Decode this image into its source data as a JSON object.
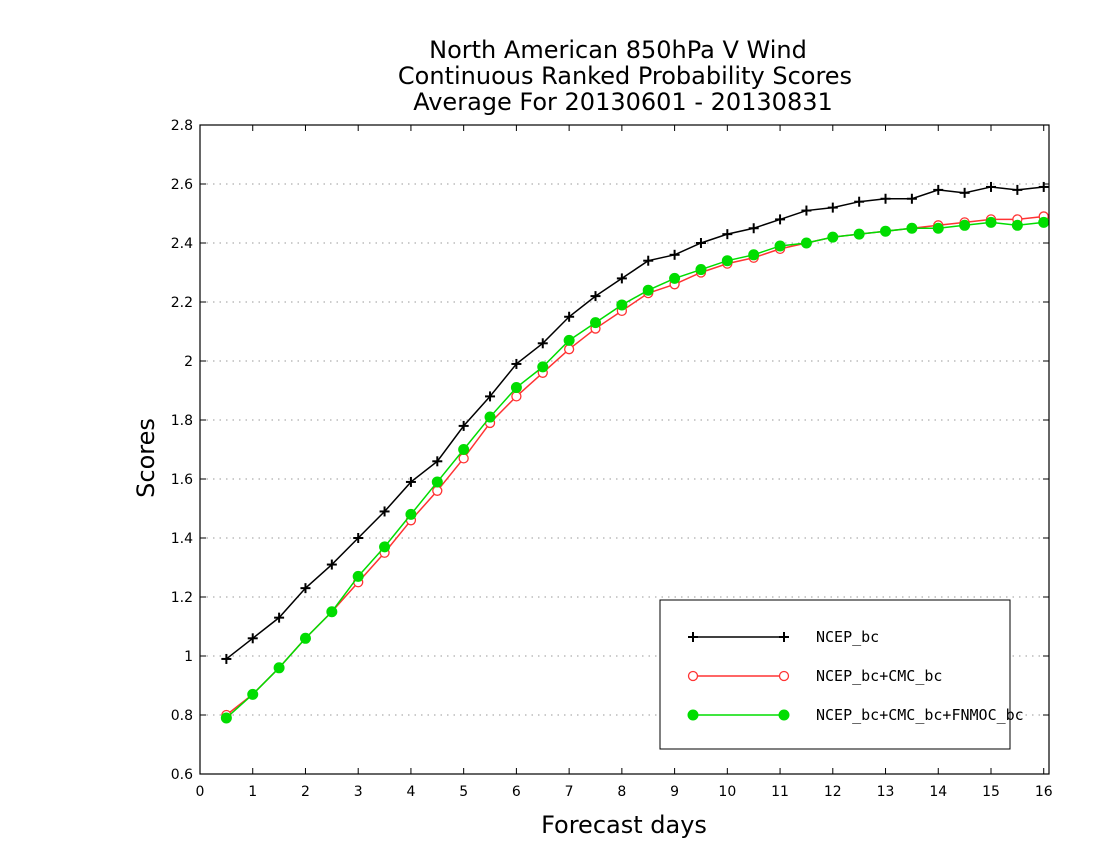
{
  "chart_data": {
    "type": "line",
    "title": [
      "North American 850hPa V Wind",
      "Continuous Ranked Probability Scores",
      "Average For 20130601 - 20130831"
    ],
    "xlabel": "Forecast days",
    "ylabel": "Scores",
    "xlim": [
      0,
      16.1
    ],
    "ylim": [
      0.6,
      2.8
    ],
    "xticks": [
      0,
      1,
      2,
      3,
      4,
      5,
      6,
      7,
      8,
      9,
      10,
      11,
      12,
      13,
      14,
      15,
      16
    ],
    "yticks": [
      0.6,
      0.8,
      1,
      1.2,
      1.4,
      1.6,
      1.8,
      2,
      2.2,
      2.4,
      2.6,
      2.8
    ],
    "ytick_labels": [
      "0.6",
      "0.8",
      "1",
      "1.2",
      "1.4",
      "1.6",
      "1.8",
      "2",
      "2.2",
      "2.4",
      "2.6",
      "2.8"
    ],
    "grid": "horizontal dotted",
    "legend_position": "bottom-right",
    "x": [
      0.5,
      1,
      1.5,
      2,
      2.5,
      3,
      3.5,
      4,
      4.5,
      5,
      5.5,
      6,
      6.5,
      7,
      7.5,
      8,
      8.5,
      9,
      9.5,
      10,
      10.5,
      11,
      11.5,
      12,
      12.5,
      13,
      13.5,
      14,
      14.5,
      15,
      15.5,
      16
    ],
    "series": [
      {
        "name": "NCEP_bc",
        "color": "#000000",
        "marker": "plus",
        "values": [
          0.99,
          1.06,
          1.13,
          1.23,
          1.31,
          1.4,
          1.49,
          1.59,
          1.66,
          1.78,
          1.88,
          1.99,
          2.06,
          2.15,
          2.22,
          2.28,
          2.34,
          2.36,
          2.4,
          2.43,
          2.45,
          2.48,
          2.51,
          2.52,
          2.54,
          2.55,
          2.55,
          2.58,
          2.57,
          2.59,
          2.58,
          2.59
        ]
      },
      {
        "name": "NCEP_bc+CMC_bc",
        "color": "#ff3333",
        "marker": "open-circle",
        "values": [
          0.8,
          0.87,
          0.96,
          1.06,
          1.15,
          1.25,
          1.35,
          1.46,
          1.56,
          1.67,
          1.79,
          1.88,
          1.96,
          2.04,
          2.11,
          2.17,
          2.23,
          2.26,
          2.3,
          2.33,
          2.35,
          2.38,
          2.4,
          2.42,
          2.43,
          2.44,
          2.45,
          2.46,
          2.47,
          2.48,
          2.48,
          2.49
        ]
      },
      {
        "name": "NCEP_bc+CMC_bc+FNMOC_bc",
        "color": "#00dd00",
        "marker": "filled-circle",
        "values": [
          0.79,
          0.87,
          0.96,
          1.06,
          1.15,
          1.27,
          1.37,
          1.48,
          1.59,
          1.7,
          1.81,
          1.91,
          1.98,
          2.07,
          2.13,
          2.19,
          2.24,
          2.28,
          2.31,
          2.34,
          2.36,
          2.39,
          2.4,
          2.42,
          2.43,
          2.44,
          2.45,
          2.45,
          2.46,
          2.47,
          2.46,
          2.47
        ]
      }
    ]
  }
}
